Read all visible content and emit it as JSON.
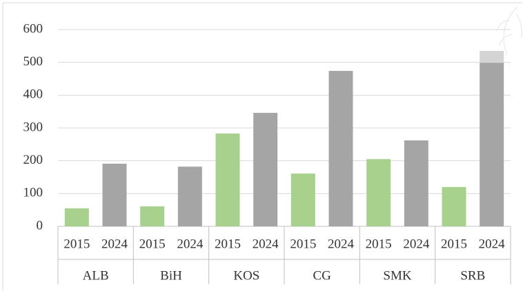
{
  "chart_data": {
    "type": "bar",
    "categories": [
      "2015",
      "2024",
      "2015",
      "2024",
      "2015",
      "2024",
      "2015",
      "2024",
      "2015",
      "2024",
      "2015",
      "2024"
    ],
    "groups": [
      "ALB",
      "BiH",
      "KOS",
      "CG",
      "SMK",
      "SRB"
    ],
    "values": [
      55,
      191,
      61,
      182,
      283,
      346,
      161,
      474,
      205,
      262,
      120,
      499
    ],
    "overflow_values": [
      null,
      null,
      null,
      null,
      null,
      null,
      null,
      null,
      null,
      null,
      null,
      36
    ],
    "colors": [
      "#a9d18e",
      "#a5a5a5"
    ],
    "overflow_color": "#d4d4d4",
    "ylim": [
      0,
      600
    ],
    "yticks": [
      0,
      100,
      200,
      300,
      400,
      500,
      600
    ],
    "grid": true
  }
}
